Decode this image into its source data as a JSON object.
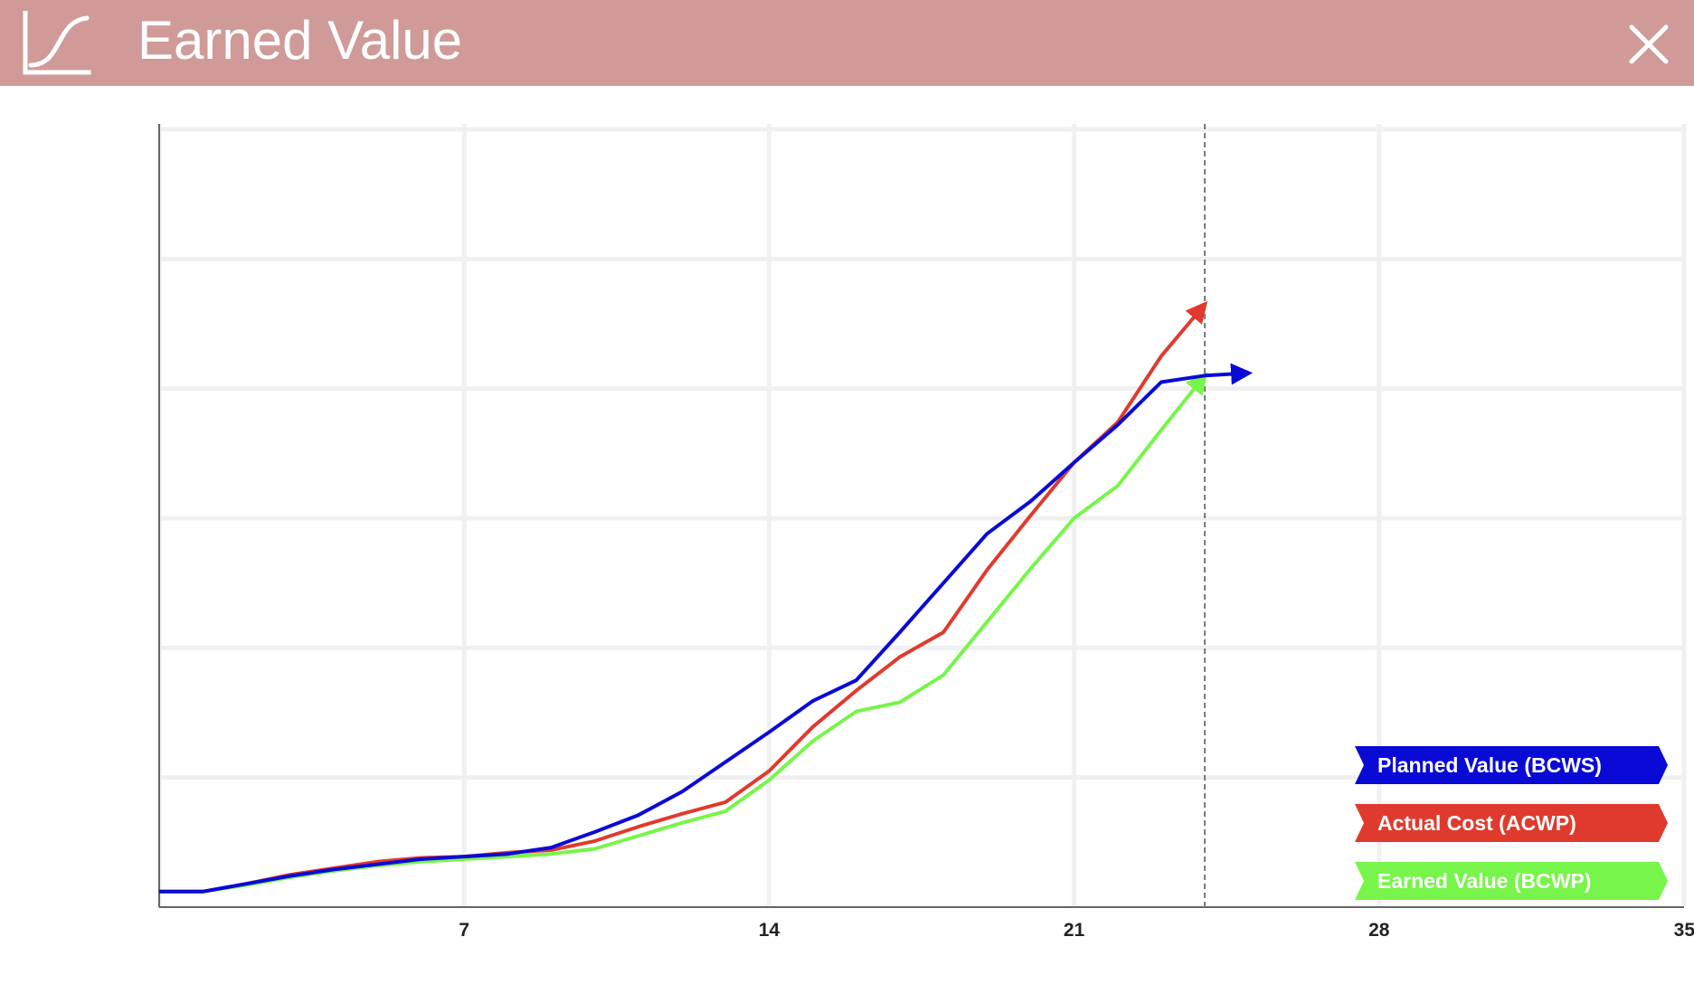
{
  "window": {
    "title": "Earned Value",
    "icon": "s-curve-chart-icon",
    "close_icon": "close-icon",
    "header_color": "#cf9a98"
  },
  "chart_data": {
    "type": "line",
    "title": "",
    "xlabel": "",
    "ylabel": "",
    "xlim": [
      0,
      35
    ],
    "ylim": [
      0,
      6
    ],
    "xticks": [
      7,
      14,
      21,
      28,
      35
    ],
    "grid": true,
    "status_date": 24,
    "legend_position": "bottom-right",
    "series": [
      {
        "name": "Planned Value (BCWS)",
        "color": "#0a0ad6",
        "points": [
          [
            0,
            0.12
          ],
          [
            1,
            0.12
          ],
          [
            2,
            0.18
          ],
          [
            3,
            0.24
          ],
          [
            4,
            0.29
          ],
          [
            5,
            0.33
          ],
          [
            6,
            0.37
          ],
          [
            7,
            0.39
          ],
          [
            8,
            0.41
          ],
          [
            9,
            0.46
          ],
          [
            10,
            0.58
          ],
          [
            11,
            0.71
          ],
          [
            12,
            0.89
          ],
          [
            13,
            1.12
          ],
          [
            14,
            1.35
          ],
          [
            15,
            1.59
          ],
          [
            16,
            1.75
          ],
          [
            17,
            2.12
          ],
          [
            18,
            2.5
          ],
          [
            19,
            2.88
          ],
          [
            20,
            3.13
          ],
          [
            21,
            3.43
          ],
          [
            22,
            3.72
          ],
          [
            23,
            4.05
          ],
          [
            24,
            4.1
          ],
          [
            25,
            4.12
          ]
        ]
      },
      {
        "name": "Actual Cost (ACWP)",
        "color": "#e03a2e",
        "points": [
          [
            0,
            0.12
          ],
          [
            1,
            0.12
          ],
          [
            2,
            0.18
          ],
          [
            3,
            0.25
          ],
          [
            4,
            0.3
          ],
          [
            5,
            0.35
          ],
          [
            6,
            0.38
          ],
          [
            7,
            0.39
          ],
          [
            8,
            0.42
          ],
          [
            9,
            0.44
          ],
          [
            10,
            0.51
          ],
          [
            11,
            0.62
          ],
          [
            12,
            0.72
          ],
          [
            13,
            0.81
          ],
          [
            14,
            1.05
          ],
          [
            15,
            1.39
          ],
          [
            16,
            1.67
          ],
          [
            17,
            1.93
          ],
          [
            18,
            2.12
          ],
          [
            19,
            2.6
          ],
          [
            20,
            3.02
          ],
          [
            21,
            3.43
          ],
          [
            22,
            3.74
          ],
          [
            23,
            4.25
          ],
          [
            24,
            4.65
          ]
        ]
      },
      {
        "name": "Earned Value (BCWP)",
        "color": "#77f54a",
        "points": [
          [
            0,
            0.12
          ],
          [
            1,
            0.12
          ],
          [
            2,
            0.17
          ],
          [
            3,
            0.23
          ],
          [
            4,
            0.28
          ],
          [
            5,
            0.32
          ],
          [
            6,
            0.35
          ],
          [
            7,
            0.37
          ],
          [
            8,
            0.39
          ],
          [
            9,
            0.41
          ],
          [
            10,
            0.45
          ],
          [
            11,
            0.55
          ],
          [
            12,
            0.65
          ],
          [
            13,
            0.74
          ],
          [
            14,
            0.98
          ],
          [
            15,
            1.28
          ],
          [
            16,
            1.51
          ],
          [
            17,
            1.58
          ],
          [
            18,
            1.79
          ],
          [
            19,
            2.2
          ],
          [
            20,
            2.61
          ],
          [
            21,
            3.0
          ],
          [
            22,
            3.25
          ],
          [
            23,
            3.68
          ],
          [
            24,
            4.1
          ]
        ]
      }
    ]
  }
}
